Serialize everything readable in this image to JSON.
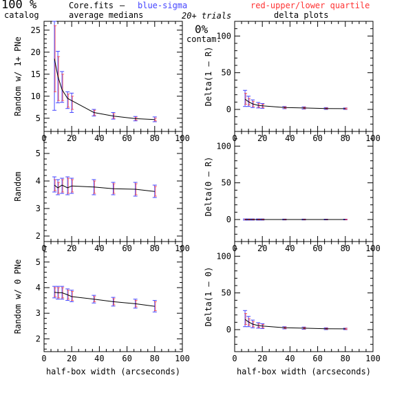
{
  "header": {
    "percent": "100 %",
    "catalog": "catalog",
    "filename": "Core.fits",
    "dash": "–",
    "medians": "average medians",
    "blue": "blue-sigma",
    "red": "red-upper/lower quartile",
    "trials": "20+ trials",
    "delta_title": "delta plots",
    "contam_pct": "0%",
    "contam": "contam."
  },
  "colors": {
    "line": "#000000",
    "sigma": "#4444ff",
    "quartile": "#ff3333"
  },
  "chart_data": [
    {
      "type": "line",
      "xlabel": "",
      "ylabel": "Random w/ 1+ PNe",
      "xlim": [
        0,
        100
      ],
      "ylim": [
        2,
        27
      ],
      "xticks": [
        0,
        20,
        40,
        60,
        80,
        100
      ],
      "yticks": [
        5,
        10,
        15,
        20,
        25
      ],
      "x": [
        7.5,
        10,
        13,
        17,
        20,
        36,
        50,
        66,
        80
      ],
      "y": [
        18.5,
        14.5,
        11.5,
        9.5,
        9.0,
        6.3,
        5.5,
        4.9,
        4.7
      ],
      "sigma": [
        [
          6.8,
          27.0
        ],
        [
          8.5,
          20.2
        ],
        [
          8.6,
          15.6
        ],
        [
          7.2,
          11.0
        ],
        [
          6.3,
          10.7
        ],
        [
          5.5,
          7.0
        ],
        [
          4.8,
          6.3
        ],
        [
          4.4,
          5.4
        ],
        [
          4.2,
          5.3
        ]
      ],
      "quartile": [
        [
          11.0,
          26.0
        ],
        [
          9.0,
          19.0
        ],
        [
          9.0,
          15.0
        ],
        [
          7.5,
          10.5
        ],
        [
          7.0,
          10.0
        ],
        [
          5.7,
          6.8
        ],
        [
          5.0,
          6.0
        ],
        [
          4.6,
          5.2
        ],
        [
          4.4,
          5.0
        ]
      ]
    },
    {
      "type": "line",
      "xlabel": "",
      "ylabel": "Delta(1 – R)",
      "xlim": [
        0,
        100
      ],
      "ylim": [
        -30,
        120
      ],
      "xticks": [
        0,
        20,
        40,
        60,
        80,
        100
      ],
      "yticks": [
        0,
        50,
        100
      ],
      "x": [
        7.5,
        10,
        13,
        17,
        20,
        36,
        50,
        66,
        80
      ],
      "y": [
        14.0,
        10.5,
        7.5,
        5.5,
        5.0,
        2.5,
        2.0,
        1.2,
        1.0
      ],
      "sigma": [
        [
          4.0,
          26.0
        ],
        [
          4.0,
          18.0
        ],
        [
          2.5,
          13.0
        ],
        [
          2.0,
          9.5
        ],
        [
          1.5,
          8.0
        ],
        [
          1.0,
          4.0
        ],
        [
          0.5,
          3.5
        ],
        [
          0.0,
          2.5
        ],
        [
          0.0,
          2.0
        ]
      ],
      "quartile": [
        [
          7.0,
          22.0
        ],
        [
          6.0,
          15.0
        ],
        [
          4.0,
          11.0
        ],
        [
          3.0,
          8.0
        ],
        [
          2.5,
          7.0
        ],
        [
          1.5,
          3.5
        ],
        [
          1.0,
          3.0
        ],
        [
          0.5,
          2.0
        ],
        [
          0.3,
          1.8
        ]
      ]
    },
    {
      "type": "line",
      "xlabel": "",
      "ylabel": "Random",
      "xlim": [
        0,
        100
      ],
      "ylim": [
        1.8,
        5.8
      ],
      "xticks": [
        0,
        20,
        40,
        60,
        80,
        100
      ],
      "yticks": [
        2,
        3,
        4,
        5
      ],
      "x": [
        7.5,
        10,
        13,
        17,
        20,
        36,
        50,
        66,
        80
      ],
      "y": [
        3.85,
        3.75,
        3.85,
        3.75,
        3.82,
        3.78,
        3.72,
        3.7,
        3.62
      ],
      "sigma": [
        [
          3.6,
          4.15
        ],
        [
          3.5,
          4.05
        ],
        [
          3.55,
          4.1
        ],
        [
          3.5,
          4.15
        ],
        [
          3.55,
          4.1
        ],
        [
          3.5,
          4.05
        ],
        [
          3.5,
          3.95
        ],
        [
          3.45,
          3.95
        ],
        [
          3.4,
          3.85
        ]
      ],
      "quartile": [
        [
          3.65,
          4.05
        ],
        [
          3.55,
          3.95
        ],
        [
          3.6,
          4.05
        ],
        [
          3.55,
          4.1
        ],
        [
          3.6,
          4.05
        ],
        [
          3.55,
          4.0
        ],
        [
          3.55,
          3.9
        ],
        [
          3.5,
          3.9
        ],
        [
          3.45,
          3.8
        ]
      ]
    },
    {
      "type": "line",
      "xlabel": "",
      "ylabel": "Delta(0 – R)",
      "xlim": [
        0,
        100
      ],
      "ylim": [
        -30,
        120
      ],
      "xticks": [
        0,
        20,
        40,
        60,
        80,
        100
      ],
      "yticks": [
        0,
        50,
        100
      ],
      "x": [
        7.5,
        10,
        13,
        17,
        20,
        36,
        50,
        66,
        80
      ],
      "y": [
        0,
        0,
        0,
        0,
        0,
        0,
        0,
        0,
        0
      ],
      "sigma": [
        [
          -0.8,
          0.8
        ],
        [
          -0.8,
          0.8
        ],
        [
          -0.8,
          0.8
        ],
        [
          -0.8,
          0.8
        ],
        [
          -0.8,
          0.8
        ],
        [
          -0.6,
          0.6
        ],
        [
          -0.6,
          0.6
        ],
        [
          -0.5,
          0.5
        ],
        [
          -0.5,
          0.5
        ]
      ],
      "quartile": [
        [
          -0.5,
          0.5
        ],
        [
          -0.5,
          0.5
        ],
        [
          -0.5,
          0.5
        ],
        [
          -0.5,
          0.5
        ],
        [
          -0.5,
          0.5
        ],
        [
          -0.4,
          0.4
        ],
        [
          -0.4,
          0.4
        ],
        [
          -0.3,
          0.3
        ],
        [
          -0.3,
          0.3
        ]
      ]
    },
    {
      "type": "line",
      "xlabel": "half-box width (arcseconds)",
      "ylabel": "Random w/ 0 PNe",
      "xlim": [
        0,
        100
      ],
      "ylim": [
        1.5,
        5.8
      ],
      "xticks": [
        0,
        20,
        40,
        60,
        80,
        100
      ],
      "yticks": [
        2,
        3,
        4,
        5
      ],
      "x": [
        7.5,
        10,
        13,
        17,
        20,
        36,
        50,
        66,
        80
      ],
      "y": [
        3.82,
        3.8,
        3.8,
        3.72,
        3.65,
        3.55,
        3.45,
        3.37,
        3.27
      ],
      "sigma": [
        [
          3.6,
          4.05
        ],
        [
          3.55,
          4.05
        ],
        [
          3.55,
          4.05
        ],
        [
          3.5,
          3.95
        ],
        [
          3.45,
          3.9
        ],
        [
          3.4,
          3.7
        ],
        [
          3.28,
          3.62
        ],
        [
          3.2,
          3.55
        ],
        [
          3.05,
          3.5
        ]
      ],
      "quartile": [
        [
          3.65,
          4.0
        ],
        [
          3.6,
          4.0
        ],
        [
          3.6,
          4.0
        ],
        [
          3.55,
          3.9
        ],
        [
          3.5,
          3.85
        ],
        [
          3.45,
          3.65
        ],
        [
          3.33,
          3.57
        ],
        [
          3.25,
          3.5
        ],
        [
          3.1,
          3.45
        ]
      ]
    },
    {
      "type": "line",
      "xlabel": "half-box width (arcseconds)",
      "ylabel": "Delta(1 – 0)",
      "xlim": [
        0,
        100
      ],
      "ylim": [
        -30,
        120
      ],
      "xticks": [
        0,
        20,
        40,
        60,
        80,
        100
      ],
      "yticks": [
        0,
        50,
        100
      ],
      "x": [
        7.5,
        10,
        13,
        17,
        20,
        36,
        50,
        66,
        80
      ],
      "y": [
        14.0,
        10.5,
        7.5,
        5.5,
        5.0,
        2.5,
        2.0,
        1.2,
        1.0
      ],
      "sigma": [
        [
          4.0,
          26.0
        ],
        [
          4.0,
          18.0
        ],
        [
          2.5,
          13.0
        ],
        [
          2.0,
          9.5
        ],
        [
          1.5,
          8.0
        ],
        [
          1.0,
          4.0
        ],
        [
          0.5,
          3.5
        ],
        [
          0.0,
          2.5
        ],
        [
          0.0,
          2.0
        ]
      ],
      "quartile": [
        [
          7.0,
          22.0
        ],
        [
          6.0,
          15.0
        ],
        [
          4.0,
          11.0
        ],
        [
          3.0,
          8.0
        ],
        [
          2.5,
          7.0
        ],
        [
          1.5,
          3.5
        ],
        [
          1.0,
          3.0
        ],
        [
          0.5,
          2.0
        ],
        [
          0.3,
          1.8
        ]
      ]
    }
  ]
}
